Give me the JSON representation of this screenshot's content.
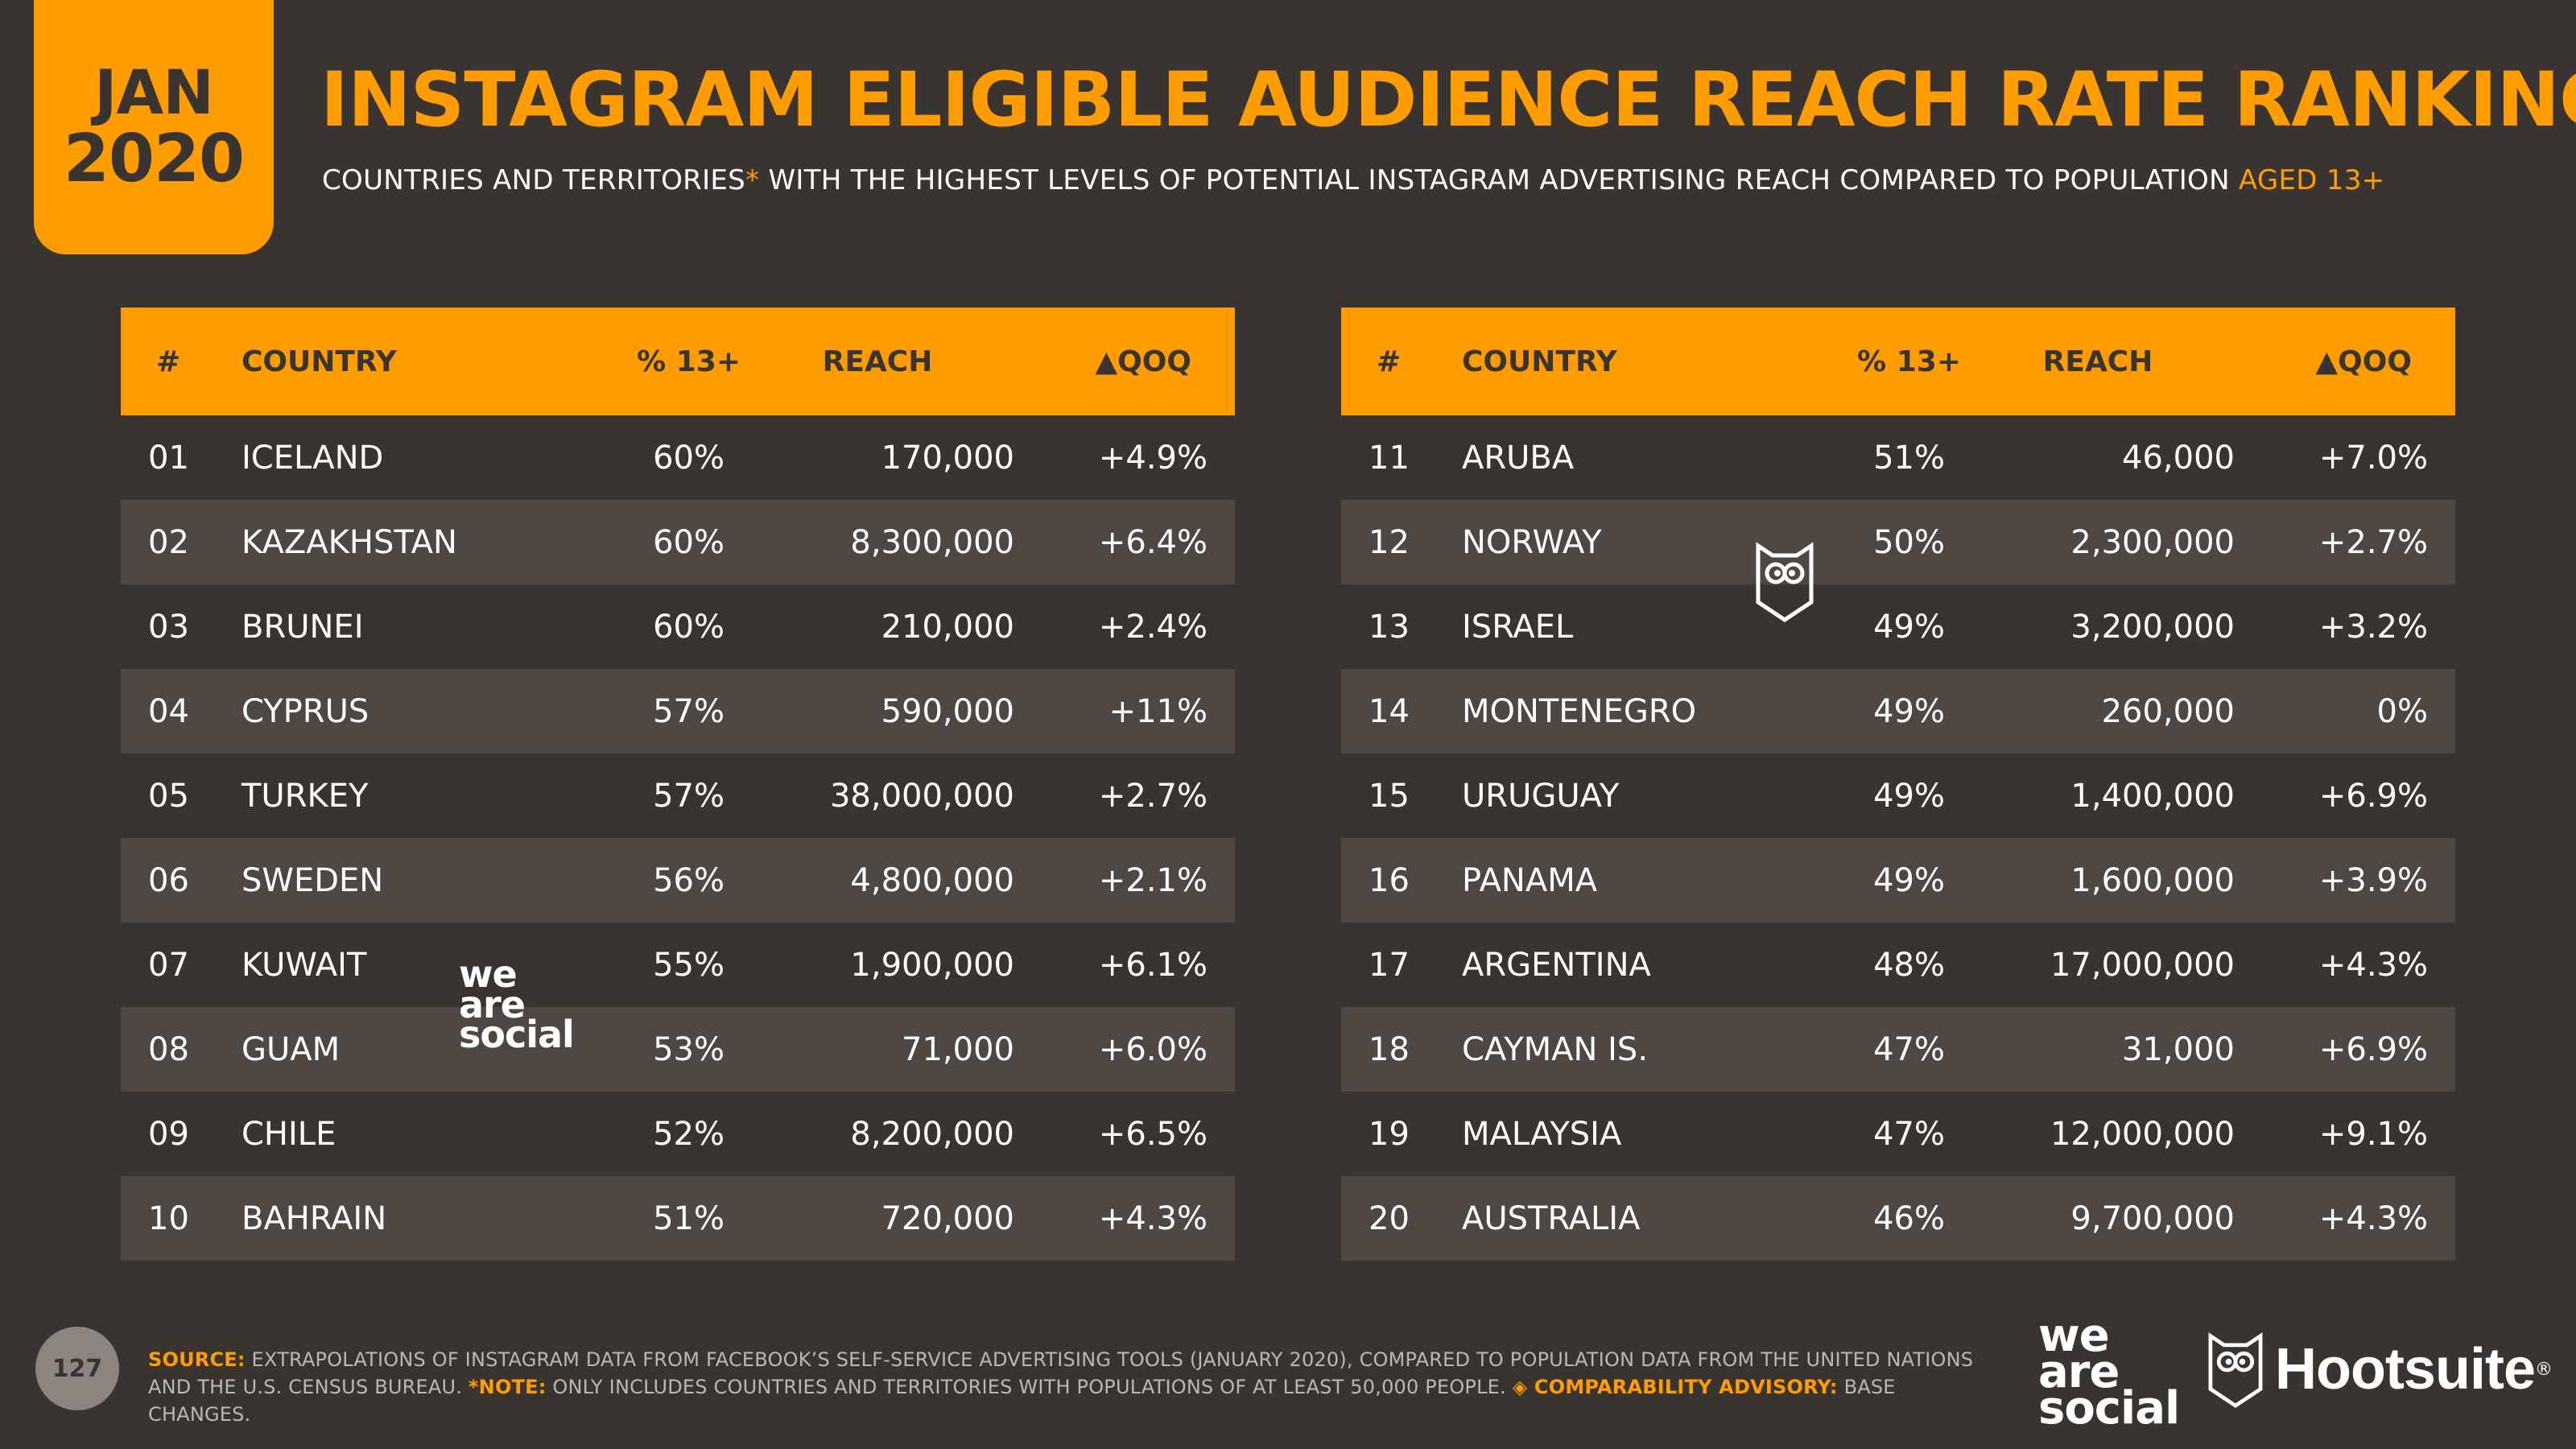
{
  "badge": {
    "month": "JAN",
    "year": "2020"
  },
  "title": "INSTAGRAM ELIGIBLE AUDIENCE REACH RATE RANKING",
  "subtitle": {
    "part1": "COUNTRIES AND TERRITORIES",
    "asterisk": "*",
    "part2": " WITH THE HIGHEST LEVELS OF POTENTIAL INSTAGRAM ADVERTISING REACH COMPARED TO POPULATION ",
    "aged": "AGED 13+"
  },
  "table_headers": {
    "num": "#",
    "country": "COUNTRY",
    "pct": "% 13+",
    "reach": "REACH",
    "qoq": "▲QOQ"
  },
  "left_rows": [
    {
      "num": "01",
      "country": "ICELAND",
      "pct": "60%",
      "reach": "170,000",
      "qoq": "+4.9%"
    },
    {
      "num": "02",
      "country": "KAZAKHSTAN",
      "pct": "60%",
      "reach": "8,300,000",
      "qoq": "+6.4%"
    },
    {
      "num": "03",
      "country": "BRUNEI",
      "pct": "60%",
      "reach": "210,000",
      "qoq": "+2.4%"
    },
    {
      "num": "04",
      "country": "CYPRUS",
      "pct": "57%",
      "reach": "590,000",
      "qoq": "+11%"
    },
    {
      "num": "05",
      "country": "TURKEY",
      "pct": "57%",
      "reach": "38,000,000",
      "qoq": "+2.7%"
    },
    {
      "num": "06",
      "country": "SWEDEN",
      "pct": "56%",
      "reach": "4,800,000",
      "qoq": "+2.1%"
    },
    {
      "num": "07",
      "country": "KUWAIT",
      "pct": "55%",
      "reach": "1,900,000",
      "qoq": "+6.1%"
    },
    {
      "num": "08",
      "country": "GUAM",
      "pct": "53%",
      "reach": "71,000",
      "qoq": "+6.0%"
    },
    {
      "num": "09",
      "country": "CHILE",
      "pct": "52%",
      "reach": "8,200,000",
      "qoq": "+6.5%"
    },
    {
      "num": "10",
      "country": "BAHRAIN",
      "pct": "51%",
      "reach": "720,000",
      "qoq": "+4.3%"
    }
  ],
  "right_rows": [
    {
      "num": "11",
      "country": "ARUBA",
      "pct": "51%",
      "reach": "46,000",
      "qoq": "+7.0%"
    },
    {
      "num": "12",
      "country": "NORWAY",
      "pct": "50%",
      "reach": "2,300,000",
      "qoq": "+2.7%"
    },
    {
      "num": "13",
      "country": "ISRAEL",
      "pct": "49%",
      "reach": "3,200,000",
      "qoq": "+3.2%"
    },
    {
      "num": "14",
      "country": "MONTENEGRO",
      "pct": "49%",
      "reach": "260,000",
      "qoq": "0%"
    },
    {
      "num": "15",
      "country": "URUGUAY",
      "pct": "49%",
      "reach": "1,400,000",
      "qoq": "+6.9%"
    },
    {
      "num": "16",
      "country": "PANAMA",
      "pct": "49%",
      "reach": "1,600,000",
      "qoq": "+3.9%"
    },
    {
      "num": "17",
      "country": "ARGENTINA",
      "pct": "48%",
      "reach": "17,000,000",
      "qoq": "+4.3%"
    },
    {
      "num": "18",
      "country": "CAYMAN IS.",
      "pct": "47%",
      "reach": "31,000",
      "qoq": "+6.9%"
    },
    {
      "num": "19",
      "country": "MALAYSIA",
      "pct": "47%",
      "reach": "12,000,000",
      "qoq": "+9.1%"
    },
    {
      "num": "20",
      "country": "AUSTRALIA",
      "pct": "46%",
      "reach": "9,700,000",
      "qoq": "+4.3%"
    }
  ],
  "watermark": {
    "line1": "we",
    "line2": "are",
    "line3": "social"
  },
  "page_number": "127",
  "footer": {
    "source_label": "SOURCE:",
    "source_text": " EXTRAPOLATIONS OF INSTAGRAM DATA FROM FACEBOOK’S SELF-SERVICE ADVERTISING TOOLS (JANUARY 2020), COMPARED TO POPULATION DATA FROM THE UNITED NATIONS AND THE U.S. CENSUS BUREAU. ",
    "note_label": "*NOTE:",
    "note_text": " ONLY INCLUDES COUNTRIES AND TERRITORIES WITH POPULATIONS OF AT LEAST 50,000 PEOPLE. ",
    "advisory_label": "◈ COMPARABILITY ADVISORY:",
    "advisory_text": " BASE CHANGES."
  },
  "brand": {
    "hootsuite": "Hootsuite",
    "reg": "®"
  },
  "colors": {
    "accent": "#ff9d00",
    "background": "#3a3430",
    "row_shade": "#4f4742"
  },
  "icons": {
    "owl": "hootsuite-owl-icon"
  }
}
